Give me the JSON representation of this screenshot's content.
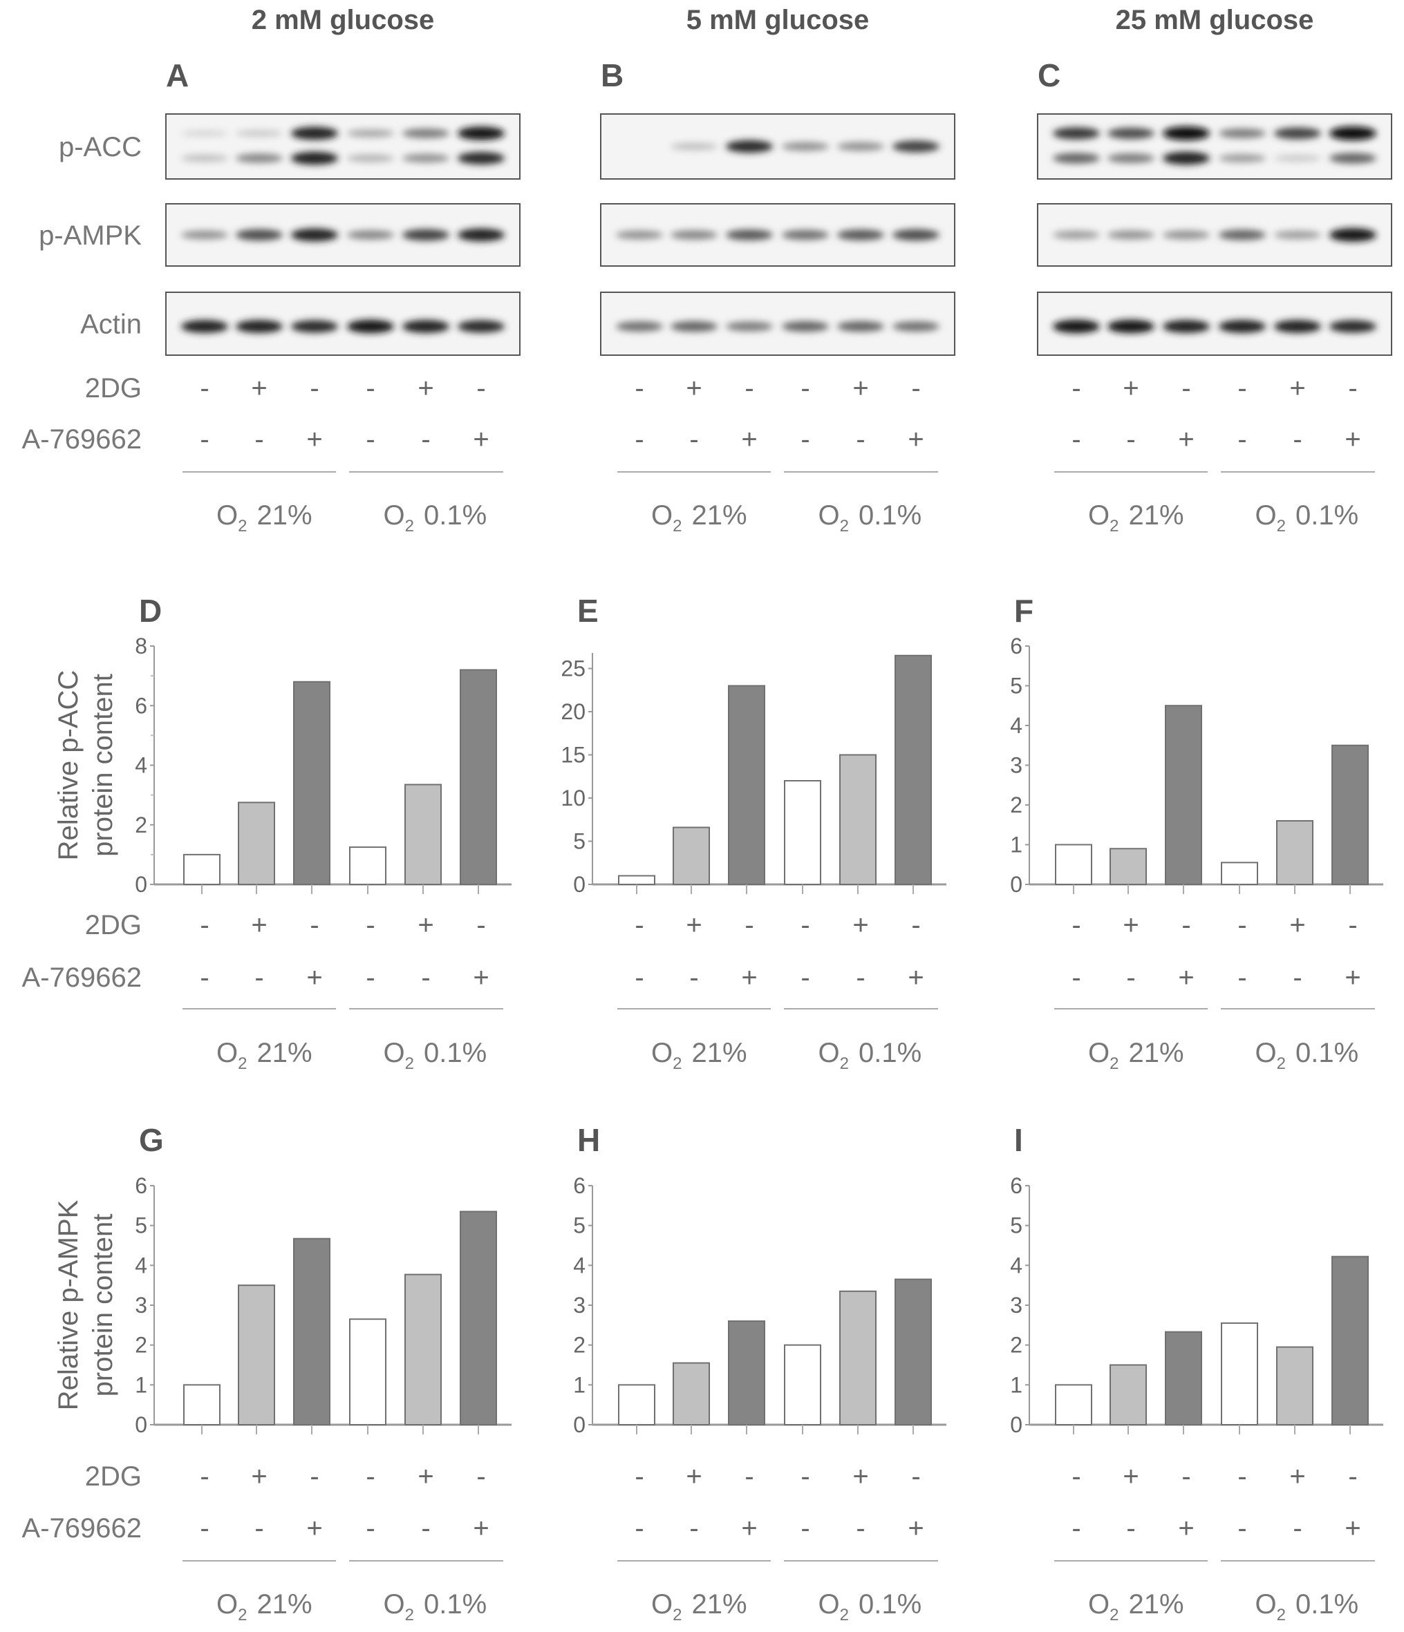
{
  "titles": [
    "2 mM glucose",
    "5 mM glucose",
    "25 mM glucose"
  ],
  "blot_letters": [
    "A",
    "B",
    "C"
  ],
  "blot_rows": [
    "p-ACC",
    "p-AMPK",
    "Actin"
  ],
  "treatments": [
    {
      "label": "2DG",
      "signs": [
        "-",
        "+",
        "-",
        "-",
        "+",
        "-"
      ]
    },
    {
      "label": "A-769662",
      "signs": [
        "-",
        "-",
        "+",
        "-",
        "-",
        "+"
      ]
    }
  ],
  "oxygen": [
    {
      "o": "O",
      "sub": "2",
      "value": "21%"
    },
    {
      "o": "O",
      "sub": "2",
      "value": "0.1%"
    }
  ],
  "blot_intensity": [
    {
      "pACC": [
        [
          0.1,
          0.15,
          0.9,
          0.3,
          0.5,
          0.95
        ],
        [
          0.2,
          0.45,
          0.9,
          0.25,
          0.4,
          0.85
        ]
      ],
      "pAMPK": [
        0.4,
        0.7,
        0.9,
        0.45,
        0.75,
        0.9
      ],
      "actin": [
        0.9,
        0.9,
        0.85,
        0.95,
        0.9,
        0.85
      ]
    },
    {
      "pACC": [
        [
          0,
          0.2,
          0.85,
          0.4,
          0.4,
          0.75
        ]
      ],
      "pAMPK": [
        0.4,
        0.45,
        0.65,
        0.55,
        0.65,
        0.7
      ],
      "actin": [
        0.55,
        0.6,
        0.5,
        0.6,
        0.6,
        0.55
      ]
    },
    {
      "pACC": [
        [
          0.8,
          0.7,
          1,
          0.5,
          0.75,
          1
        ],
        [
          0.6,
          0.5,
          0.9,
          0.35,
          0.15,
          0.6
        ]
      ],
      "pAMPK": [
        0.35,
        0.4,
        0.4,
        0.6,
        0.35,
        0.95
      ],
      "actin": [
        0.95,
        0.95,
        0.9,
        0.9,
        0.9,
        0.85
      ]
    }
  ],
  "colors": {
    "bar_fills": [
      "#ffffff",
      "#c0c0c0",
      "#858585",
      "#ffffff",
      "#c0c0c0",
      "#858585"
    ],
    "bar_stroke": "#707070",
    "axis": "#999999"
  },
  "chart_data": [
    {
      "type": "bar",
      "letter": "D",
      "ylabel": [
        "Relative p-ACC",
        "protein content"
      ],
      "ylim": [
        0,
        8
      ],
      "ticks": [
        0,
        2,
        4,
        6,
        8
      ],
      "minor": 1,
      "values": [
        1.0,
        2.75,
        6.8,
        1.25,
        3.35,
        7.2
      ]
    },
    {
      "type": "bar",
      "letter": "E",
      "ylabel": null,
      "ylim": [
        0,
        26.8
      ],
      "ticks": [
        0,
        5,
        10,
        15,
        20,
        25
      ],
      "minor": null,
      "values": [
        1.0,
        6.6,
        23.0,
        12.0,
        15.0,
        26.5
      ]
    },
    {
      "type": "bar",
      "letter": "F",
      "ylabel": null,
      "ylim": [
        0,
        6
      ],
      "ticks": [
        0,
        1,
        2,
        3,
        4,
        5,
        6
      ],
      "minor": null,
      "values": [
        1.0,
        0.9,
        4.5,
        0.55,
        1.6,
        3.5
      ]
    },
    {
      "type": "bar",
      "letter": "G",
      "ylabel": [
        "Relative p-AMPK",
        "protein content"
      ],
      "ylim": [
        0,
        6
      ],
      "ticks": [
        0,
        1,
        2,
        3,
        4,
        5,
        6
      ],
      "minor": null,
      "values": [
        1.0,
        3.5,
        4.67,
        2.65,
        3.77,
        5.35
      ]
    },
    {
      "type": "bar",
      "letter": "H",
      "ylabel": null,
      "ylim": [
        0,
        6
      ],
      "ticks": [
        0,
        1,
        2,
        3,
        4,
        5,
        6
      ],
      "minor": null,
      "values": [
        1.0,
        1.55,
        2.6,
        2.0,
        3.35,
        3.65
      ]
    },
    {
      "type": "bar",
      "letter": "I",
      "ylabel": null,
      "ylim": [
        0,
        6
      ],
      "ticks": [
        0,
        1,
        2,
        3,
        4,
        5,
        6
      ],
      "minor": null,
      "values": [
        1.0,
        1.5,
        2.33,
        2.55,
        1.95,
        4.22
      ]
    }
  ]
}
